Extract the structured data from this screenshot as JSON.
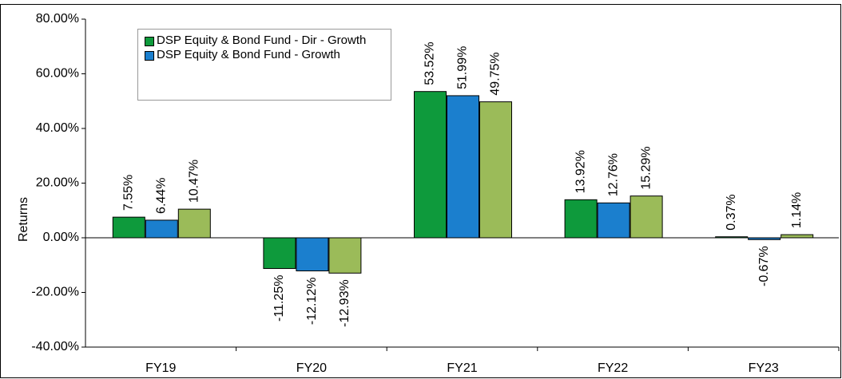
{
  "chart_data": {
    "type": "bar",
    "y_label": "Returns",
    "categories": [
      "FY19",
      "FY20",
      "FY21",
      "FY22",
      "FY23"
    ],
    "series": [
      {
        "name": "DSP Equity & Bond Fund - Dir - Growth",
        "color": "#0e9a3c",
        "values": [
          7.55,
          -11.25,
          53.52,
          13.92,
          0.37
        ],
        "value_labels": [
          "7.55%",
          "-11.25%",
          "53.52%",
          "13.92%",
          "0.37%"
        ]
      },
      {
        "name": "DSP Equity & Bond Fund - Growth",
        "color": "#1b7fce",
        "values": [
          6.44,
          -12.12,
          51.99,
          12.76,
          -0.67
        ],
        "value_labels": [
          "6.44%",
          "-12.12%",
          "51.99%",
          "12.76%",
          "-0.67%"
        ]
      },
      {
        "color": "#9bbb59",
        "values": [
          10.47,
          -12.93,
          49.75,
          15.29,
          1.14
        ],
        "value_labels": [
          "10.47%",
          "-12.93%",
          "49.75%",
          "15.29%",
          "1.14%"
        ]
      }
    ],
    "ylim": [
      -40,
      80
    ],
    "yticks": [
      {
        "value": -40,
        "label": "-40.00%"
      },
      {
        "value": -20,
        "label": "-20.00%"
      },
      {
        "value": 0,
        "label": "0.00%"
      },
      {
        "value": 20,
        "label": "20.00%"
      },
      {
        "value": 40,
        "label": "40.00%"
      },
      {
        "value": 60,
        "label": "60.00%"
      },
      {
        "value": 80,
        "label": "80.00%"
      }
    ]
  }
}
